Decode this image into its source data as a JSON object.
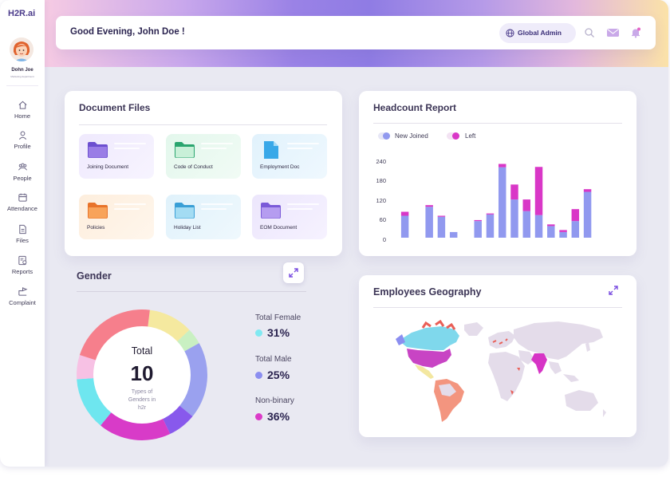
{
  "sidebar": {
    "logo": "H2R.ai",
    "user_name": "Dohn Joe",
    "user_role": "Marketing department",
    "items": [
      {
        "label": "Home",
        "icon": "home-icon"
      },
      {
        "label": "Profile",
        "icon": "user-icon"
      },
      {
        "label": "People",
        "icon": "people-icon"
      },
      {
        "label": "Attendance",
        "icon": "calendar-icon"
      },
      {
        "label": "Files",
        "icon": "file-icon"
      },
      {
        "label": "Reports",
        "icon": "report-icon"
      },
      {
        "label": "Complaint",
        "icon": "complaint-icon"
      }
    ]
  },
  "header": {
    "greeting": "Good Evening, John Doe !",
    "role": "Global Admin",
    "icons": [
      "globe-icon",
      "search-icon",
      "mail-icon",
      "bell-icon"
    ]
  },
  "documents": {
    "title": "Document Files",
    "items": [
      {
        "label": "Joining Document",
        "color": "#8c6fe0"
      },
      {
        "label": "Code of Conduct",
        "color": "#3fbf8a"
      },
      {
        "label": "Employment Doc",
        "color": "#39a8e8"
      },
      {
        "label": "Policies",
        "color": "#f08a3a"
      },
      {
        "label": "Holiday List",
        "color": "#4fb6e0"
      },
      {
        "label": "EOM Document",
        "color": "#9a7de6"
      }
    ]
  },
  "headcount": {
    "title": "Headcount Report",
    "legend_joined": "New Joined",
    "legend_left": "Left",
    "colors": {
      "joined": "#9199ef",
      "left": "#d937c7"
    }
  },
  "chart_data": {
    "type": "bar",
    "stacked": true,
    "categories": [
      "",
      "",
      "",
      "",
      "",
      "",
      "",
      "",
      "",
      "",
      "",
      "",
      "",
      "",
      "",
      "",
      "",
      "",
      ""
    ],
    "series": [
      {
        "name": "New Joined",
        "values": [
          66,
          0,
          93,
          63,
          17,
          0,
          50,
          70,
          212,
          115,
          80,
          68,
          35,
          17,
          50,
          138,
          0,
          0,
          0
        ]
      },
      {
        "name": "Left",
        "values": [
          12,
          0,
          5,
          3,
          0,
          0,
          3,
          3,
          10,
          45,
          35,
          145,
          5,
          6,
          36,
          8,
          0,
          0,
          0
        ]
      }
    ],
    "y_ticks": [
      "240",
      "180",
      "120",
      "60",
      "0"
    ],
    "ylim": [
      0,
      240
    ]
  },
  "gender": {
    "title": "Gender",
    "total_label": "Total",
    "total_value": "10",
    "subtitle": "Types of Genders in h2r",
    "segments": [
      {
        "label": "Total Female",
        "value": "31%",
        "color": "#80e9f2"
      },
      {
        "label": "Total Male",
        "value": "25%",
        "color": "#8b8ef0"
      },
      {
        "label": "Non-binary",
        "value": "36%",
        "color": "#db3bc8"
      }
    ],
    "ring_colors": [
      "#f5e99f",
      "#c9f0c2",
      "#9aa1ef",
      "#8859ec",
      "#d83bc8",
      "#6ee6ef",
      "#f7c1e4",
      "#f67f8c"
    ]
  },
  "geography": {
    "title": "Employees Geography",
    "colors": {
      "land": "#e4dcea",
      "north_america": "#c844c4",
      "canada": "#7fd8ec",
      "latam": "#f3957f",
      "accent": "#e95f57",
      "india": "#d634c5"
    }
  }
}
